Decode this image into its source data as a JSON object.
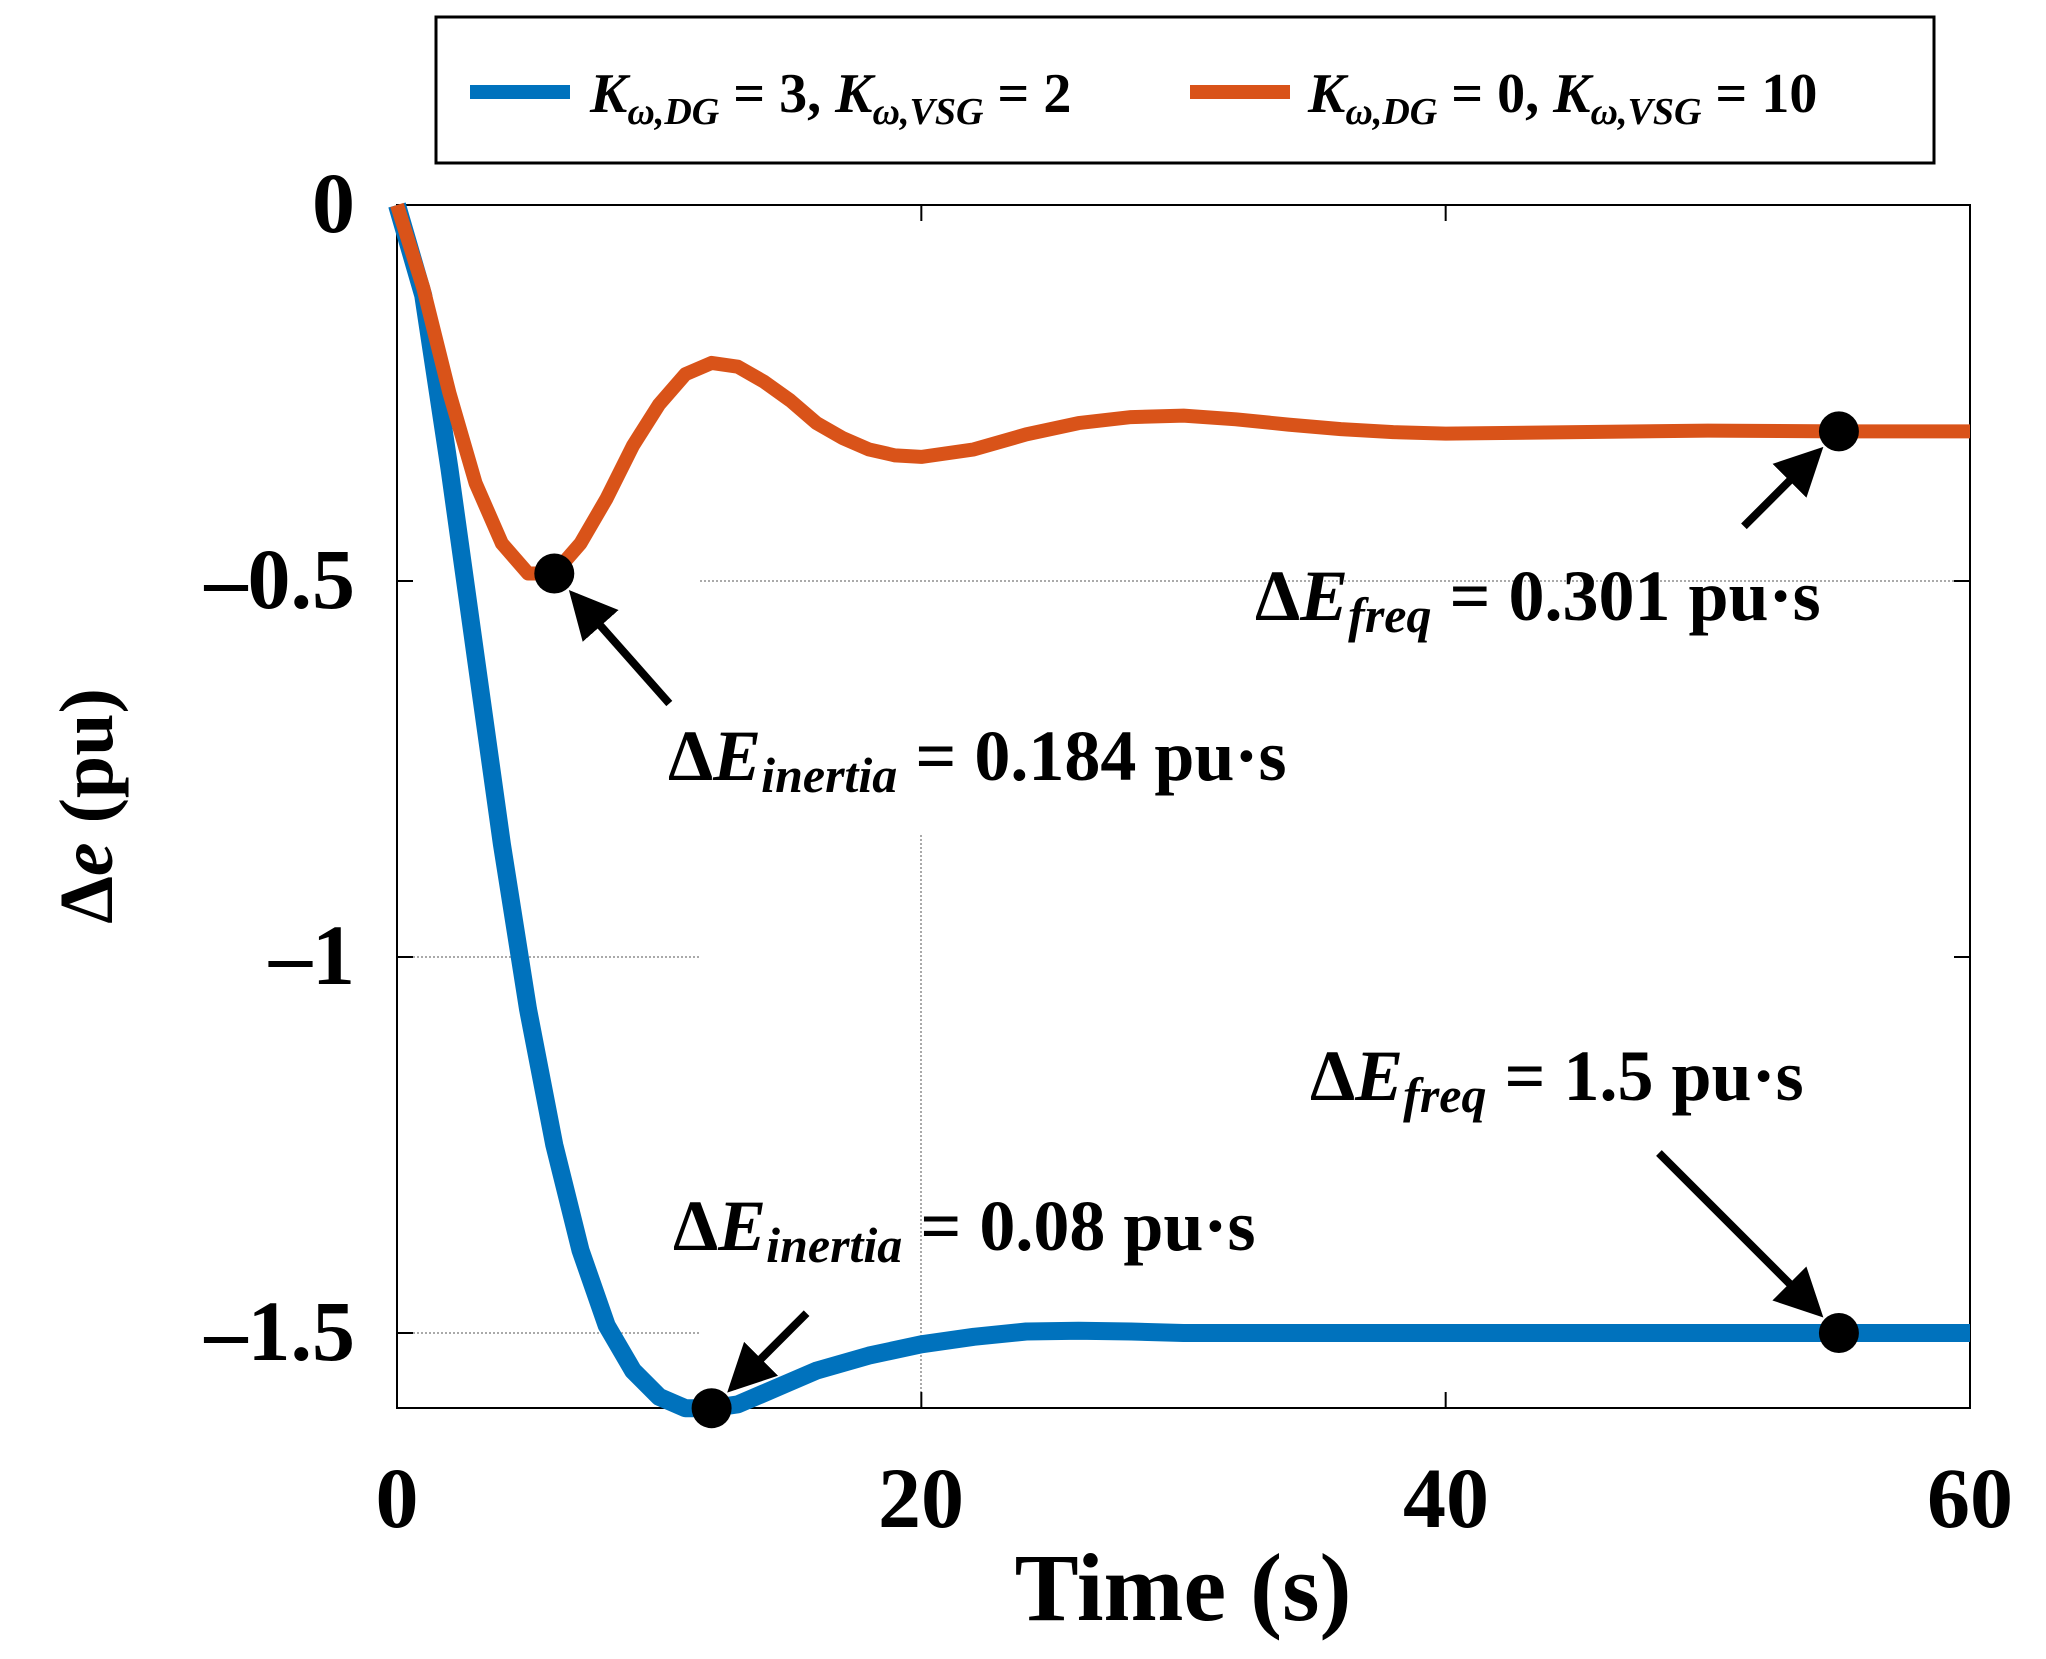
{
  "chart_data": {
    "type": "line",
    "xlabel": "Time (s)",
    "ylabel_prefix": "Δ",
    "ylabel_var": "e",
    "ylabel_unit": " (pu)",
    "xlim": [
      0,
      60
    ],
    "ylim": [
      -1.6,
      0
    ],
    "xticks": [
      0,
      20,
      40,
      60
    ],
    "xtick_labels": [
      "0",
      "20",
      "40",
      "60"
    ],
    "yticks": [
      0,
      -0.5,
      -1,
      -1.5
    ],
    "ytick_labels": [
      "0",
      "–0.5",
      "–1",
      "–1.5"
    ],
    "legend_position": "top",
    "series": [
      {
        "name": "Kω,DG = 3, Kω,VSG = 2",
        "legend": {
          "k1": "K",
          "s1": "ω,DG",
          "m": " = 3, ",
          "k2": "K",
          "s2": "ω,VSG",
          "e": " = 2"
        },
        "color": "#0072BD",
        "x": [
          0,
          1,
          2,
          3,
          4,
          5,
          6,
          7,
          8,
          9,
          10,
          11,
          12,
          13,
          14,
          15,
          16,
          17,
          18,
          20,
          22,
          24,
          26,
          28,
          30,
          35,
          40,
          45,
          50,
          55,
          60
        ],
        "y": [
          0,
          -0.12,
          -0.35,
          -0.6,
          -0.85,
          -1.07,
          -1.25,
          -1.39,
          -1.49,
          -1.55,
          -1.585,
          -1.6,
          -1.6,
          -1.595,
          -1.58,
          -1.565,
          -1.55,
          -1.54,
          -1.53,
          -1.515,
          -1.505,
          -1.498,
          -1.497,
          -1.498,
          -1.5,
          -1.5,
          -1.5,
          -1.5,
          -1.5,
          -1.5,
          -1.5
        ]
      },
      {
        "name": "Kω,DG = 0, Kω,VSG = 10",
        "legend": {
          "k1": "K",
          "s1": "ω,DG",
          "m": " = 0, ",
          "k2": "K",
          "s2": "ω,VSG",
          "e": " = 10"
        },
        "color": "#D95319",
        "x": [
          0,
          1,
          2,
          3,
          4,
          5,
          6,
          7,
          8,
          9,
          10,
          11,
          12,
          13,
          14,
          15,
          16,
          17,
          18,
          19,
          20,
          22,
          24,
          26,
          28,
          30,
          32,
          34,
          36,
          38,
          40,
          45,
          50,
          55,
          60
        ],
        "y": [
          0,
          -0.11,
          -0.25,
          -0.37,
          -0.45,
          -0.49,
          -0.49,
          -0.45,
          -0.39,
          -0.32,
          -0.265,
          -0.225,
          -0.21,
          -0.215,
          -0.235,
          -0.26,
          -0.29,
          -0.31,
          -0.325,
          -0.333,
          -0.335,
          -0.325,
          -0.305,
          -0.29,
          -0.282,
          -0.28,
          -0.285,
          -0.292,
          -0.298,
          -0.302,
          -0.304,
          -0.302,
          -0.3,
          -0.301,
          -0.301
        ]
      }
    ],
    "annotations": [
      {
        "delta": "Δ",
        "var": "E",
        "sub": "inertia",
        "text": " = 0.184 pu·s",
        "x": 6,
        "y": -0.49,
        "color": "#D95319"
      },
      {
        "delta": "Δ",
        "var": "E",
        "sub": "freq",
        "text": " = 0.301 pu·s",
        "x": 55,
        "y": -0.301,
        "color": "#D95319"
      },
      {
        "delta": "Δ",
        "var": "E",
        "sub": "inertia",
        "text": " = 0.08 pu·s",
        "x": 12,
        "y": -1.6,
        "color": "#0072BD"
      },
      {
        "delta": "Δ",
        "var": "E",
        "sub": "freq",
        "text": " = 1.5 pu·s",
        "x": 55,
        "y": -1.5,
        "color": "#0072BD"
      }
    ]
  }
}
